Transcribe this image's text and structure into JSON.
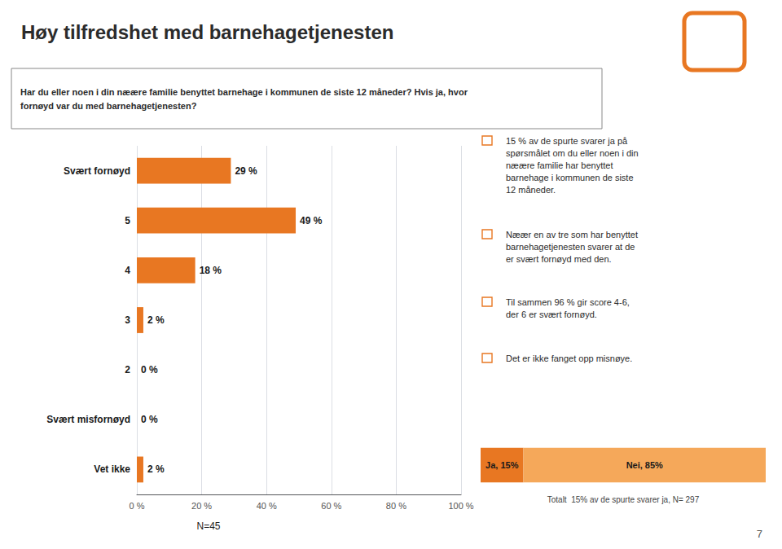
{
  "chart_data": [
    {
      "type": "bar",
      "title": "Høy tilfredshet med barnehagetjenesten",
      "subtitle": "Har du eller noen i din næære familie benyttet barnehage i kommunen de siste 12 måneder? Hvis ja, hvor\nfornøyd var du med barnehagetjenesten?",
      "orientation": "horizontal",
      "categories": [
        "Svært fornøyd",
        "5",
        "4",
        "3",
        "2",
        "Svært misfornøyd",
        "Vet ikke"
      ],
      "values": [
        29,
        49,
        18,
        2,
        0,
        0,
        2
      ],
      "value_labels": [
        "29 %",
        "49 %",
        "18 %",
        "2 %",
        "0 %",
        "0 %",
        "2 %"
      ],
      "data_labels": true,
      "color": "#E87722",
      "xlim": [
        0,
        100
      ],
      "xticks": [
        {
          "value": 0,
          "label": "0 %"
        },
        {
          "value": 20,
          "label": "20 %"
        },
        {
          "value": 40,
          "label": "40 %"
        },
        {
          "value": 60,
          "label": "60 %"
        },
        {
          "value": 80,
          "label": "80 %"
        },
        {
          "value": 100,
          "label": "100 %"
        }
      ],
      "grid": true,
      "annotations": [
        "N=45",
        "15 % av de spurte svarer ja på\nspørsmålet om du eller noen i din\nnæære familie har benyttet\nbarnehage i kommunen de siste\n12 måneder.",
        "Næær en av tre som har benyttet\nbarnehagetjenesten svarer at de\ner svært fornøyd med den.",
        "Til sammen 96 % gir score 4-6,\nder 6 er svært fornøyd.",
        "Det er ikke fanget opp misnøye.",
        "7"
      ]
    },
    {
      "type": "bar",
      "orientation": "horizontal",
      "stacked": true,
      "series": [
        {
          "color": "#E87722",
          "values": [
            15
          ],
          "value_labels": [
            "Ja, 15%"
          ]
        },
        {
          "color": "#F5A85A",
          "values": [
            85
          ],
          "value_labels": [
            "Nei, 85%"
          ]
        }
      ],
      "data_labels": true,
      "xlim": [
        0,
        100
      ],
      "tick_labels": false,
      "annotations": [
        "Totalt  15% av de spurte svarer ja, N= 297"
      ]
    }
  ]
}
